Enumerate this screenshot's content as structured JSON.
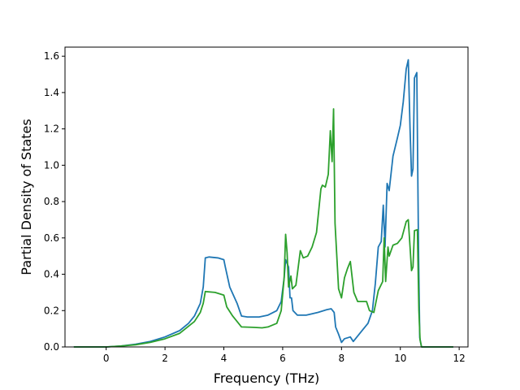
{
  "chart_data": {
    "type": "line",
    "title": "",
    "xlabel": "Frequency (THz)",
    "ylabel": "Partial Density of States",
    "xlim": [
      -1.4,
      12.3
    ],
    "ylim": [
      0.0,
      1.65
    ],
    "xticks": [
      0,
      2,
      4,
      6,
      8,
      10,
      12
    ],
    "yticks": [
      0.0,
      0.2,
      0.4,
      0.6,
      0.8,
      1.0,
      1.2,
      1.4,
      1.6
    ],
    "xtick_labels": [
      "0",
      "2",
      "4",
      "6",
      "8",
      "10",
      "12"
    ],
    "ytick_labels": [
      "0.0",
      "0.2",
      "0.4",
      "0.6",
      "0.8",
      "1.0",
      "1.2",
      "1.4",
      "1.6"
    ],
    "grid": false,
    "legend": "none",
    "series": [
      {
        "color": "#1f77b4",
        "points": [
          [
            -1.1,
            0.0
          ],
          [
            0.0,
            0.0
          ],
          [
            0.5,
            0.005
          ],
          [
            1.0,
            0.015
          ],
          [
            1.5,
            0.03
          ],
          [
            2.0,
            0.055
          ],
          [
            2.5,
            0.09
          ],
          [
            2.8,
            0.13
          ],
          [
            3.0,
            0.17
          ],
          [
            3.2,
            0.24
          ],
          [
            3.3,
            0.33
          ],
          [
            3.37,
            0.49
          ],
          [
            3.5,
            0.495
          ],
          [
            3.8,
            0.49
          ],
          [
            4.0,
            0.48
          ],
          [
            4.05,
            0.44
          ],
          [
            4.2,
            0.33
          ],
          [
            4.45,
            0.24
          ],
          [
            4.6,
            0.17
          ],
          [
            4.8,
            0.165
          ],
          [
            5.2,
            0.165
          ],
          [
            5.5,
            0.175
          ],
          [
            5.8,
            0.2
          ],
          [
            5.95,
            0.25
          ],
          [
            6.05,
            0.38
          ],
          [
            6.1,
            0.48
          ],
          [
            6.2,
            0.44
          ],
          [
            6.25,
            0.27
          ],
          [
            6.3,
            0.27
          ],
          [
            6.35,
            0.2
          ],
          [
            6.5,
            0.175
          ],
          [
            6.8,
            0.175
          ],
          [
            7.2,
            0.19
          ],
          [
            7.5,
            0.205
          ],
          [
            7.65,
            0.21
          ],
          [
            7.75,
            0.19
          ],
          [
            7.8,
            0.11
          ],
          [
            7.9,
            0.07
          ],
          [
            8.0,
            0.025
          ],
          [
            8.1,
            0.045
          ],
          [
            8.3,
            0.055
          ],
          [
            8.4,
            0.03
          ],
          [
            8.5,
            0.05
          ],
          [
            8.7,
            0.09
          ],
          [
            8.9,
            0.13
          ],
          [
            9.05,
            0.2
          ],
          [
            9.15,
            0.35
          ],
          [
            9.25,
            0.55
          ],
          [
            9.35,
            0.58
          ],
          [
            9.42,
            0.78
          ],
          [
            9.48,
            0.55
          ],
          [
            9.55,
            0.9
          ],
          [
            9.62,
            0.86
          ],
          [
            9.75,
            1.05
          ],
          [
            9.9,
            1.15
          ],
          [
            10.0,
            1.22
          ],
          [
            10.1,
            1.35
          ],
          [
            10.2,
            1.53
          ],
          [
            10.27,
            1.58
          ],
          [
            10.33,
            1.2
          ],
          [
            10.38,
            0.94
          ],
          [
            10.43,
            0.98
          ],
          [
            10.48,
            1.48
          ],
          [
            10.56,
            1.51
          ],
          [
            10.62,
            0.5
          ],
          [
            10.66,
            0.05
          ],
          [
            10.72,
            0.0
          ],
          [
            11.8,
            0.0
          ]
        ]
      },
      {
        "color": "#2ca02c",
        "points": [
          [
            -1.1,
            0.0
          ],
          [
            0.0,
            0.0
          ],
          [
            0.5,
            0.005
          ],
          [
            1.0,
            0.012
          ],
          [
            1.5,
            0.025
          ],
          [
            2.0,
            0.045
          ],
          [
            2.5,
            0.075
          ],
          [
            3.0,
            0.14
          ],
          [
            3.2,
            0.19
          ],
          [
            3.3,
            0.24
          ],
          [
            3.37,
            0.305
          ],
          [
            3.7,
            0.3
          ],
          [
            4.0,
            0.285
          ],
          [
            4.1,
            0.22
          ],
          [
            4.3,
            0.17
          ],
          [
            4.6,
            0.11
          ],
          [
            5.0,
            0.108
          ],
          [
            5.3,
            0.105
          ],
          [
            5.5,
            0.11
          ],
          [
            5.8,
            0.13
          ],
          [
            5.95,
            0.2
          ],
          [
            6.05,
            0.38
          ],
          [
            6.1,
            0.62
          ],
          [
            6.15,
            0.52
          ],
          [
            6.2,
            0.33
          ],
          [
            6.28,
            0.39
          ],
          [
            6.33,
            0.32
          ],
          [
            6.45,
            0.34
          ],
          [
            6.6,
            0.53
          ],
          [
            6.7,
            0.49
          ],
          [
            6.85,
            0.5
          ],
          [
            7.0,
            0.55
          ],
          [
            7.15,
            0.63
          ],
          [
            7.3,
            0.87
          ],
          [
            7.35,
            0.89
          ],
          [
            7.45,
            0.88
          ],
          [
            7.55,
            0.95
          ],
          [
            7.62,
            1.19
          ],
          [
            7.68,
            1.02
          ],
          [
            7.73,
            1.31
          ],
          [
            7.78,
            0.68
          ],
          [
            7.9,
            0.32
          ],
          [
            8.0,
            0.27
          ],
          [
            8.1,
            0.38
          ],
          [
            8.2,
            0.43
          ],
          [
            8.3,
            0.47
          ],
          [
            8.42,
            0.3
          ],
          [
            8.55,
            0.25
          ],
          [
            8.85,
            0.25
          ],
          [
            8.95,
            0.2
          ],
          [
            9.1,
            0.19
          ],
          [
            9.25,
            0.31
          ],
          [
            9.4,
            0.36
          ],
          [
            9.45,
            0.6
          ],
          [
            9.5,
            0.36
          ],
          [
            9.58,
            0.55
          ],
          [
            9.62,
            0.5
          ],
          [
            9.75,
            0.56
          ],
          [
            9.9,
            0.57
          ],
          [
            10.05,
            0.6
          ],
          [
            10.2,
            0.69
          ],
          [
            10.27,
            0.7
          ],
          [
            10.33,
            0.55
          ],
          [
            10.38,
            0.42
          ],
          [
            10.43,
            0.44
          ],
          [
            10.48,
            0.64
          ],
          [
            10.58,
            0.645
          ],
          [
            10.63,
            0.2
          ],
          [
            10.67,
            0.04
          ],
          [
            10.72,
            0.0
          ],
          [
            11.8,
            0.0
          ]
        ]
      }
    ]
  }
}
